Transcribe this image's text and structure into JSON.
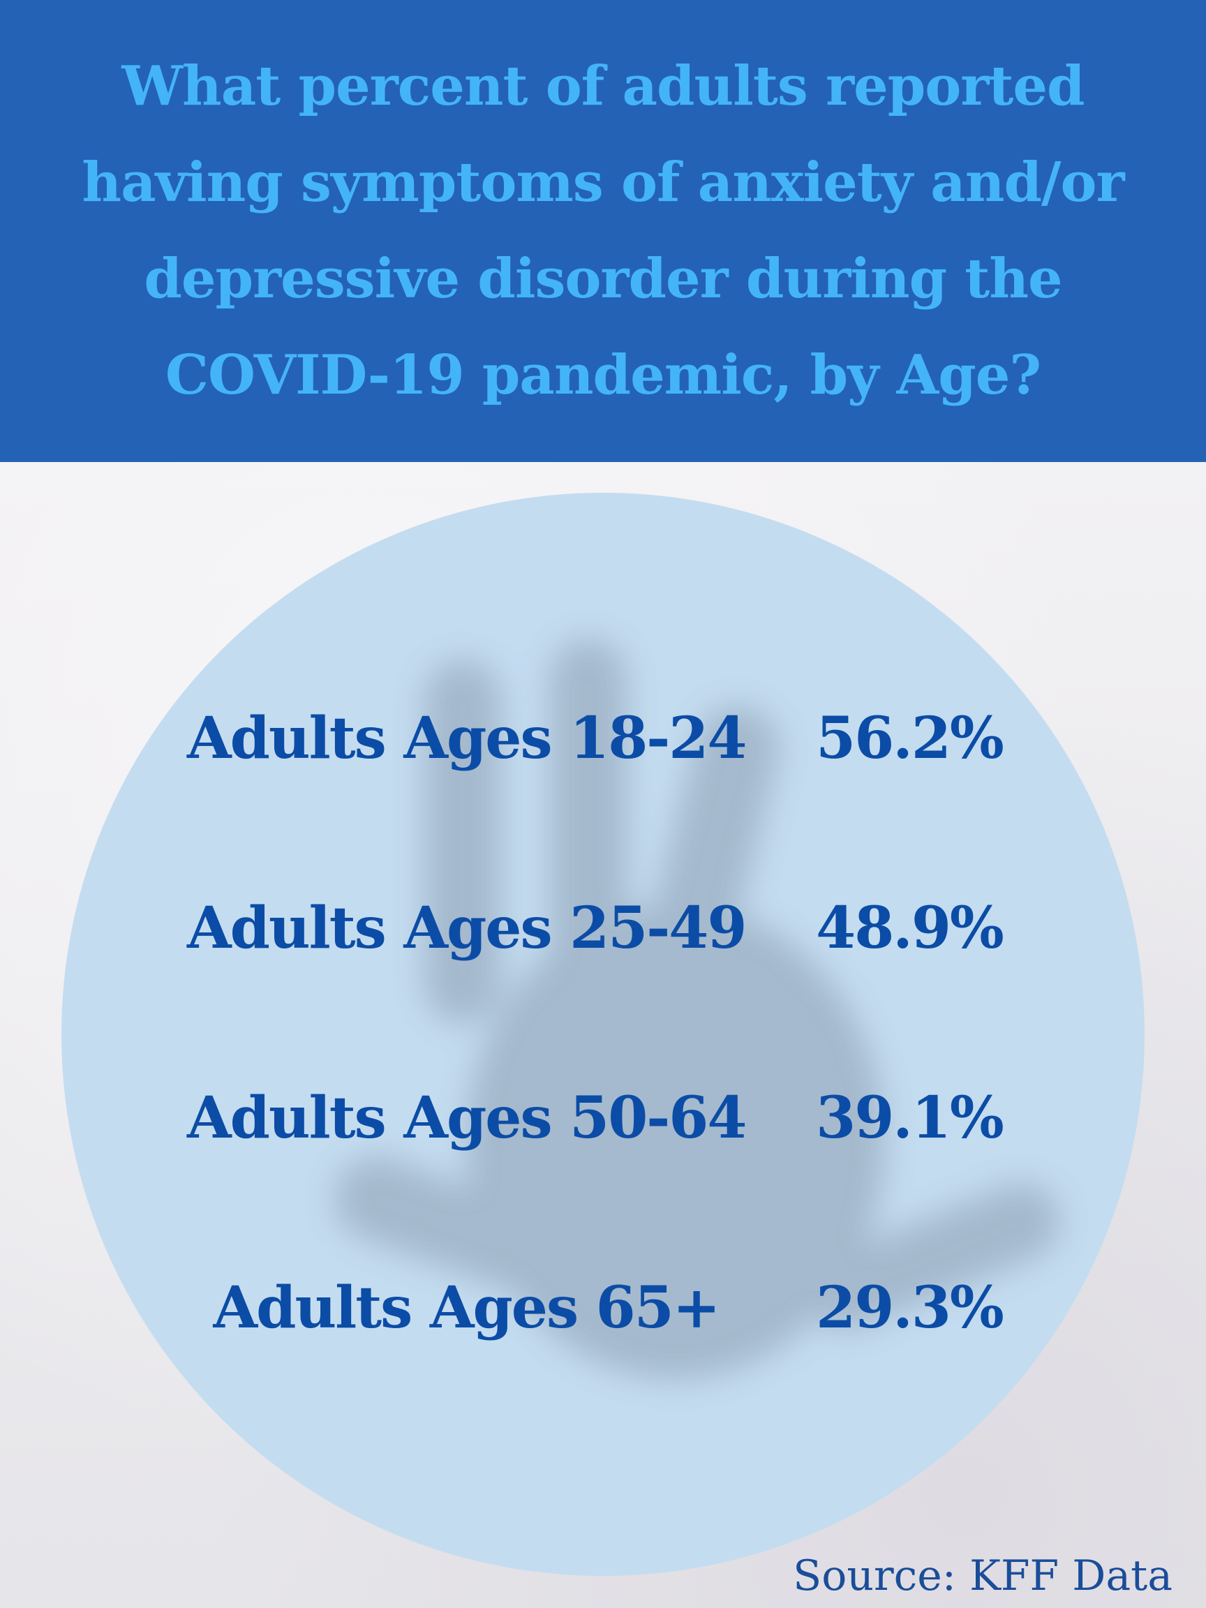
{
  "title": "What percent of adults reported having symptoms of anxiety and/or depressive disorder during the COVID-19 pandemic, by Age?",
  "rows": [
    {
      "label": "Adults Ages 18-24",
      "value": "56.2%"
    },
    {
      "label": "Adults Ages 25-49",
      "value": "48.9%"
    },
    {
      "label": "Adults Ages 50-64",
      "value": "39.1%"
    },
    {
      "label": "Adults Ages 65+",
      "value": "29.3%"
    }
  ],
  "source": "Source: KFF Data",
  "colors": {
    "header_bg": "#2462b6",
    "title_text": "#44b4f8",
    "circle_fill": "#c4dcf0",
    "row_text": "#0b4ca6",
    "source_text": "#1a4d9a"
  }
}
